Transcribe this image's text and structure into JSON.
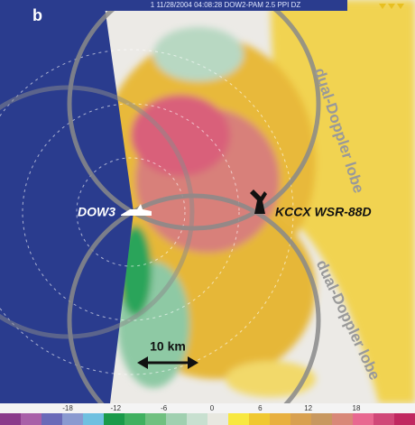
{
  "panel_label": "b",
  "header": "1 11/28/2004 04:08:28 DOW2-PAM 2.5 PPI DZ",
  "sites": [
    {
      "label": "DOW3"
    },
    {
      "label": "KCCX WSR-88D"
    }
  ],
  "lobes": [
    "dual-Doppler lobe",
    "dual-Doppler lobe"
  ],
  "scale_label": "10 km",
  "colorbar": {
    "ticks": [
      -18,
      -12,
      -6,
      0,
      6,
      12,
      18
    ]
  }
}
